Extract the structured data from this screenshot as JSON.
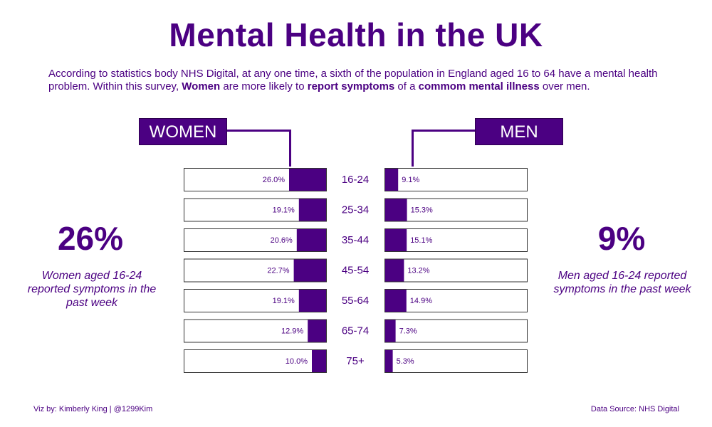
{
  "title": "Mental Health in the UK",
  "intro": {
    "p1": "According to statistics body NHS Digital, at any one time, a sixth of the population in England aged 16 to 64 have a mental health problem.  Within this survey, ",
    "b1": "Women",
    "p2": " are more likely to ",
    "b2": "report symptoms",
    "p3": " of a ",
    "b3": "commom mental illness",
    "p4": " over men."
  },
  "labels": {
    "women": "WOMEN",
    "men": "MEN"
  },
  "women_stat": {
    "value": "26%",
    "caption": "Women aged 16-24 reported symptoms in the past week"
  },
  "men_stat": {
    "value": "9%",
    "caption": "Men aged 16-24 reported symptoms in the past week"
  },
  "footer": {
    "left": "Viz by:  Kimberly King  |  @1299Kim",
    "right": "Data Source:  NHS Digital"
  },
  "colors": {
    "accent": "#4b0082",
    "bar_border": "#333333",
    "background": "#ffffff"
  },
  "chart_data": {
    "type": "bar",
    "categories": [
      "16-24",
      "25-34",
      "35-44",
      "45-54",
      "55-64",
      "65-74",
      "75+"
    ],
    "series": [
      {
        "name": "WOMEN",
        "values": [
          26.0,
          19.1,
          20.6,
          22.7,
          19.1,
          12.9,
          10.0
        ],
        "labels": [
          "26.0%",
          "19.1%",
          "20.6%",
          "22.7%",
          "19.1%",
          "12.9%",
          "10.0%"
        ]
      },
      {
        "name": "MEN",
        "values": [
          9.1,
          15.3,
          15.1,
          13.2,
          14.9,
          7.3,
          5.3
        ],
        "labels": [
          "9.1%",
          "15.3%",
          "15.1%",
          "13.2%",
          "14.9%",
          "7.3%",
          "5.3%"
        ]
      }
    ],
    "xlim": [
      0,
      100
    ],
    "orientation": "horizontal-butterfly"
  }
}
